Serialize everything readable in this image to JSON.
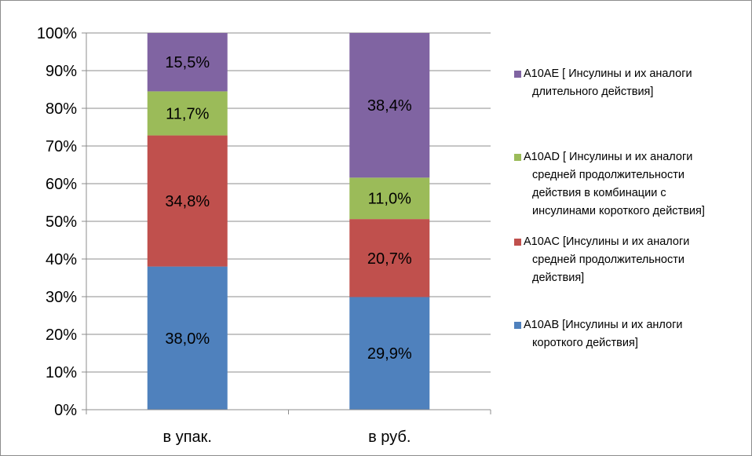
{
  "chart_data": {
    "type": "bar",
    "stacked": true,
    "percent": true,
    "categories": [
      "в упак.",
      "в руб."
    ],
    "series": [
      {
        "name": "A10AB [Инсулины и их анлоги короткого действия]",
        "legend_lines": [
          "A10AB [Инсулины и их анлоги",
          "короткого действия]"
        ],
        "values": [
          38.0,
          29.9
        ],
        "labels": [
          "38,0%",
          "29,9%"
        ],
        "color": "#4f81bd"
      },
      {
        "name": "A10AC [Инсулины и их аналоги средней продолжительности действия]",
        "legend_lines": [
          "A10AC [Инсулины и их аналоги",
          "средней продолжительности",
          "действия]"
        ],
        "values": [
          34.8,
          20.7
        ],
        "labels": [
          "34,8%",
          "20,7%"
        ],
        "color": "#c0504d"
      },
      {
        "name": "A10AD [ Инсулины и их аналоги средней продолжительности действия в комбинации с инсулинами короткого действия]",
        "legend_lines": [
          "A10AD [ Инсулины и их аналоги",
          "средней продолжительности",
          "действия в комбинации с",
          "инсулинами короткого действия]"
        ],
        "values": [
          11.7,
          11.0
        ],
        "labels": [
          "11,7%",
          "11,0%"
        ],
        "color": "#9bbb59"
      },
      {
        "name": "A10AE [ Инсулины и их аналоги длительного действия]",
        "legend_lines": [
          "A10AE [ Инсулины и их аналоги",
          "длительного действия]"
        ],
        "values": [
          15.5,
          38.4
        ],
        "labels": [
          "15,5%",
          "38,4%"
        ],
        "color": "#8064a2"
      }
    ],
    "y_ticks": [
      "0%",
      "10%",
      "20%",
      "30%",
      "40%",
      "50%",
      "60%",
      "70%",
      "80%",
      "90%",
      "100%"
    ],
    "ylim": [
      0,
      100
    ],
    "grid": true,
    "legend_position": "right"
  }
}
